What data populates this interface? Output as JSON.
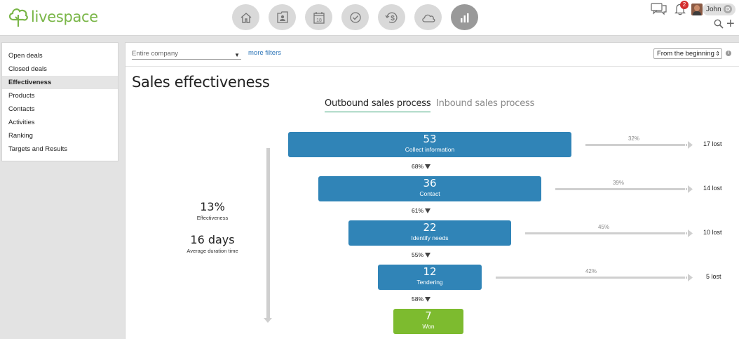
{
  "app": {
    "name": "livespace",
    "brand_color": "#7ab648"
  },
  "nav": [
    {
      "name": "home-icon"
    },
    {
      "name": "contacts-icon"
    },
    {
      "name": "calendar-icon",
      "text": "18"
    },
    {
      "name": "tasks-check-icon"
    },
    {
      "name": "deals-money-icon"
    },
    {
      "name": "cloud-icon"
    },
    {
      "name": "reports-chart-icon",
      "active": true
    }
  ],
  "header": {
    "user_name": "John",
    "notifications_count": "2"
  },
  "sidebar": {
    "items": [
      {
        "label": "Open deals"
      },
      {
        "label": "Closed deals"
      },
      {
        "label": "Effectiveness",
        "active": true
      },
      {
        "label": "Products"
      },
      {
        "label": "Contacts"
      },
      {
        "label": "Activities"
      },
      {
        "label": "Ranking"
      },
      {
        "label": "Targets and Results"
      }
    ]
  },
  "filters": {
    "company": "Entire company",
    "more_filters": "more filters",
    "period": "From the beginning"
  },
  "page": {
    "title": "Sales effectiveness"
  },
  "tabs": [
    {
      "label": "Outbound sales process",
      "active": true
    },
    {
      "label": "Inbound sales process"
    }
  ],
  "metrics": {
    "effectiveness_value": "13%",
    "effectiveness_label": "Effectiveness",
    "duration_value": "16 days",
    "duration_label": "Average duration time"
  },
  "funnel": {
    "stages": [
      {
        "count": "53",
        "label": "Collect information",
        "loss_pct": "32%",
        "lost": "17 lost",
        "next_conversion": "68%"
      },
      {
        "count": "36",
        "label": "Contact",
        "loss_pct": "39%",
        "lost": "14 lost",
        "next_conversion": "61%"
      },
      {
        "count": "22",
        "label": "Identify needs",
        "loss_pct": "45%",
        "lost": "10 lost",
        "next_conversion": "55%"
      },
      {
        "count": "12",
        "label": "Tendering",
        "loss_pct": "42%",
        "lost": "5 lost",
        "next_conversion": "58%"
      },
      {
        "count": "7",
        "label": "Won"
      }
    ],
    "stage_color": "#3084b7",
    "won_color": "#7dbb2f"
  }
}
